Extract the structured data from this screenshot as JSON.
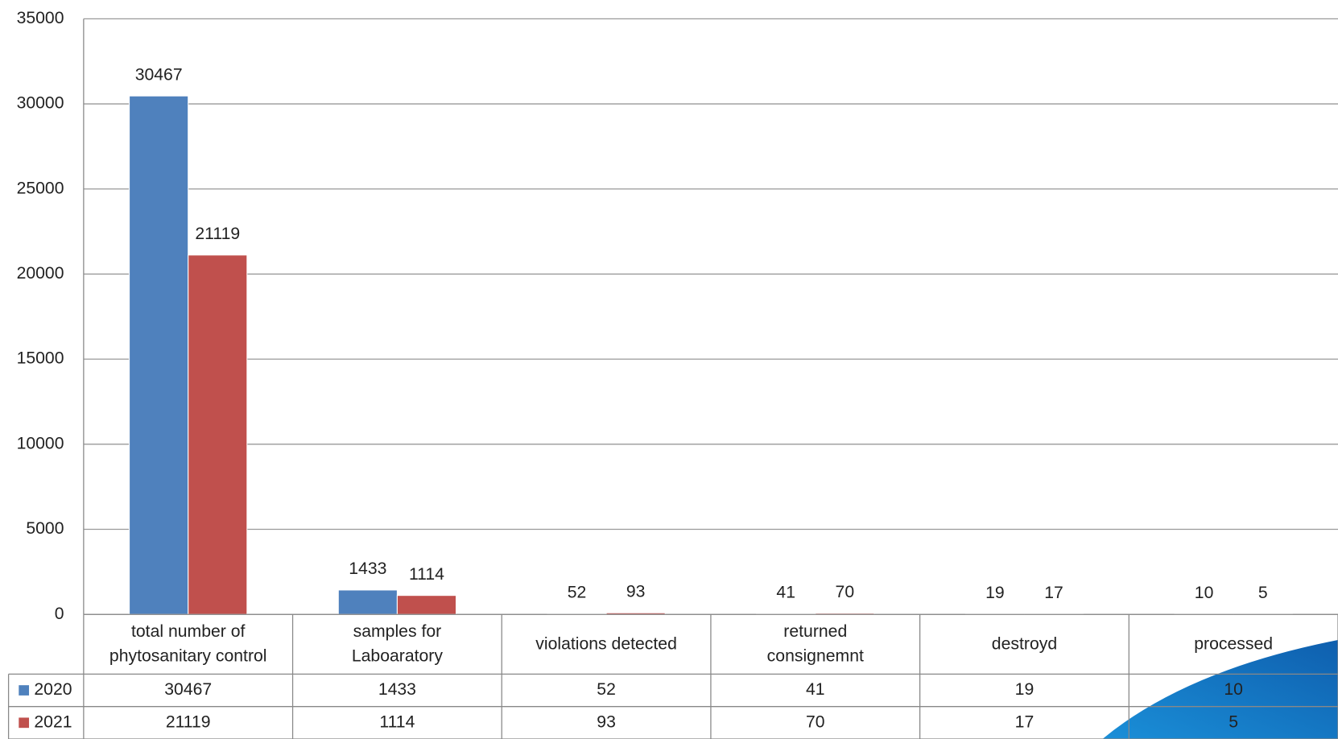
{
  "chart_data": {
    "type": "bar",
    "categories": [
      "total number of\nphytosanitary control",
      "samples for\nLaboaratory",
      "violations detected",
      "returned\nconsignemnt",
      "destroyd",
      "processed"
    ],
    "series": [
      {
        "name": "2020",
        "color": "#4f81bd",
        "values": [
          30467,
          1433,
          52,
          41,
          19,
          10
        ]
      },
      {
        "name": "2021",
        "color": "#c0504d",
        "values": [
          21119,
          1114,
          93,
          70,
          17,
          5
        ]
      }
    ],
    "ylim": [
      0,
      35000
    ],
    "yticks": [
      0,
      5000,
      10000,
      15000,
      20000,
      25000,
      30000,
      35000
    ],
    "grid": true
  }
}
